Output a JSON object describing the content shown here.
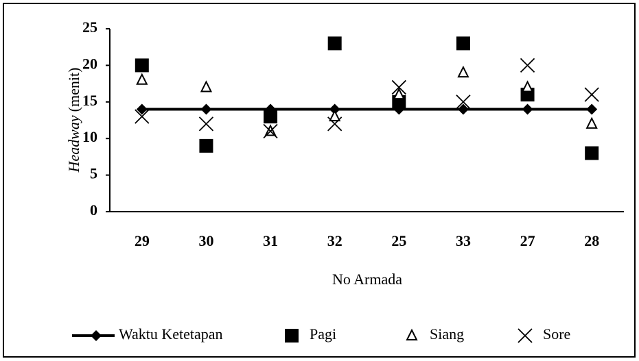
{
  "chart_data": {
    "type": "line",
    "y_label": [
      "Headway",
      "(menit)"
    ],
    "x_label": "No Armada",
    "categories": [
      "29",
      "30",
      "31",
      "32",
      "25",
      "33",
      "27",
      "28"
    ],
    "series": [
      {
        "name": "Waktu Ketetapan",
        "color": "#000000",
        "marker": "diamond",
        "line": true,
        "values": [
          14,
          14,
          14,
          14,
          14,
          14,
          14,
          14
        ]
      },
      {
        "name": "Pagi",
        "color": "#000000",
        "marker": "square",
        "line": false,
        "values": [
          20,
          9,
          13,
          23,
          15,
          23,
          16,
          8
        ]
      },
      {
        "name": "Siang",
        "color": "#000000",
        "marker": "triangle",
        "line": false,
        "values": [
          18,
          17,
          11,
          13,
          16,
          19,
          17,
          12
        ]
      },
      {
        "name": "Sore",
        "color": "#000000",
        "marker": "x",
        "line": false,
        "values": [
          13,
          12,
          11,
          12,
          17,
          15,
          20,
          16
        ]
      }
    ],
    "ylim": [
      0,
      25
    ],
    "yticks": [
      0,
      5,
      10,
      15,
      20,
      25
    ],
    "grid": false,
    "legend": "bottom"
  }
}
